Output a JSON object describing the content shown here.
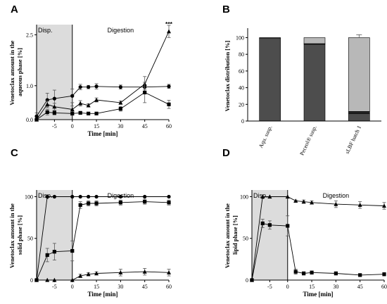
{
  "chart_data": [
    {
      "panel": "A",
      "type": "line",
      "xlabel": "Time [min]",
      "ylabel": "Venetoclax amount in the aqueous phase [%]",
      "x_ticks": [
        "-5",
        "0",
        "15",
        "30",
        "45",
        "60"
      ],
      "y_ticks": [
        "0.0",
        "1.0",
        "2.5"
      ],
      "ylim": [
        0,
        2.8
      ],
      "phase_labels": [
        "Disp.",
        "Digestion"
      ],
      "annotations": [
        {
          "text": "***",
          "x": 60,
          "y": 2.72
        }
      ],
      "series": [
        {
          "marker": "circle",
          "x": [
            -10,
            -7,
            -5,
            0,
            5,
            10,
            15,
            30,
            45,
            60
          ],
          "values": [
            0.1,
            0.58,
            0.62,
            0.7,
            0.96,
            0.96,
            0.98,
            0.96,
            0.96,
            0.98
          ],
          "err": [
            0.1,
            0.2,
            0.25,
            0.2,
            0.08,
            0.05,
            0.08,
            0.06,
            0.07,
            0.06
          ]
        },
        {
          "marker": "triangle",
          "x": [
            -10,
            -7,
            -5,
            0,
            5,
            10,
            15,
            30,
            45,
            60
          ],
          "values": [
            0.0,
            0.45,
            0.38,
            0.3,
            0.48,
            0.42,
            0.58,
            0.5,
            1.05,
            2.6
          ],
          "err": [
            0,
            0.1,
            0.1,
            0.1,
            0.08,
            0.05,
            0.06,
            0.05,
            0.22,
            0.18
          ]
        },
        {
          "marker": "square",
          "x": [
            -10,
            -7,
            -5,
            0,
            5,
            10,
            15,
            30,
            45,
            60
          ],
          "values": [
            0.0,
            0.22,
            0.2,
            0.18,
            0.2,
            0.18,
            0.18,
            0.32,
            0.8,
            0.45
          ],
          "err": [
            0,
            0.08,
            0.06,
            0.05,
            0.04,
            0.04,
            0.03,
            0.07,
            0.3,
            0.12
          ]
        }
      ]
    },
    {
      "panel": "B",
      "type": "bar",
      "ylabel": "Venetoclax distribution [%]",
      "categories": [
        "Aqu. susp.",
        "Peceol® susp.",
        "sLBF batch 1"
      ],
      "y_ticks": [
        "0",
        "20",
        "40",
        "60",
        "80",
        "100"
      ],
      "ylim": [
        0,
        108
      ],
      "colors": [
        "#4d4d4d",
        "#222222",
        "#b8b8b8"
      ],
      "stacks": [
        [
          99.5,
          0,
          0.5
        ],
        [
          92,
          0.8,
          7.2
        ],
        [
          9,
          2.5,
          88.5
        ]
      ],
      "totals_err": [
        0,
        0,
        3.5
      ]
    },
    {
      "panel": "C",
      "type": "line",
      "xlabel": "Time [min]",
      "ylabel": "Venetoclax amount in the solid phase [%]",
      "x_ticks": [
        "-5",
        "0",
        "15",
        "30",
        "45",
        "60"
      ],
      "y_ticks": [
        "0",
        "50",
        "100"
      ],
      "ylim": [
        0,
        108
      ],
      "phase_labels": [
        "Disp.",
        "Digestion"
      ],
      "series": [
        {
          "marker": "circle",
          "x": [
            -10,
            -7,
            -5,
            0,
            5,
            10,
            15,
            30,
            45,
            60
          ],
          "values": [
            0,
            100,
            100,
            100,
            100,
            100,
            100,
            100,
            100,
            100
          ],
          "err": [
            0,
            0,
            0,
            0,
            0,
            0,
            0,
            0,
            0,
            0
          ]
        },
        {
          "marker": "square",
          "x": [
            -10,
            -7,
            -5,
            0,
            5,
            10,
            15,
            30,
            45,
            60
          ],
          "values": [
            0,
            30,
            34,
            35,
            90,
            92,
            92,
            93,
            94,
            93
          ],
          "err": [
            0,
            8,
            10,
            12,
            4,
            3,
            3,
            3,
            3,
            3
          ]
        },
        {
          "marker": "triangle",
          "x": [
            -10,
            -7,
            -5,
            0,
            5,
            10,
            15,
            30,
            45,
            60
          ],
          "values": [
            0,
            0,
            0,
            0,
            5,
            7,
            8,
            9,
            10,
            9
          ],
          "err": [
            0,
            0,
            0,
            0,
            2,
            2,
            2,
            4,
            4,
            4
          ]
        }
      ]
    },
    {
      "panel": "D",
      "type": "line",
      "xlabel": "Time [min]",
      "ylabel": "Venetoclax amount in the lipid phase [%]",
      "x_ticks": [
        "-5",
        "0",
        "15",
        "30",
        "45",
        "60"
      ],
      "y_ticks": [
        "0",
        "50",
        "100"
      ],
      "ylim": [
        0,
        108
      ],
      "phase_labels": [
        "Disp.",
        "Digestion"
      ],
      "series": [
        {
          "marker": "triangle",
          "x": [
            -10,
            -7,
            -5,
            0,
            5,
            10,
            15,
            30,
            45,
            60
          ],
          "values": [
            0,
            100,
            100,
            100,
            95,
            94,
            93,
            91,
            90,
            89
          ],
          "err": [
            0,
            0,
            0,
            0,
            1,
            2,
            2,
            4,
            4,
            4
          ]
        },
        {
          "marker": "square",
          "x": [
            -10,
            -7,
            -5,
            0,
            5,
            10,
            15,
            30,
            45,
            60
          ],
          "values": [
            0,
            68,
            66,
            65,
            10,
            8,
            9,
            8,
            6,
            7
          ],
          "err": [
            0,
            5,
            5,
            12,
            3,
            2,
            2,
            2,
            1,
            2
          ]
        }
      ]
    }
  ]
}
